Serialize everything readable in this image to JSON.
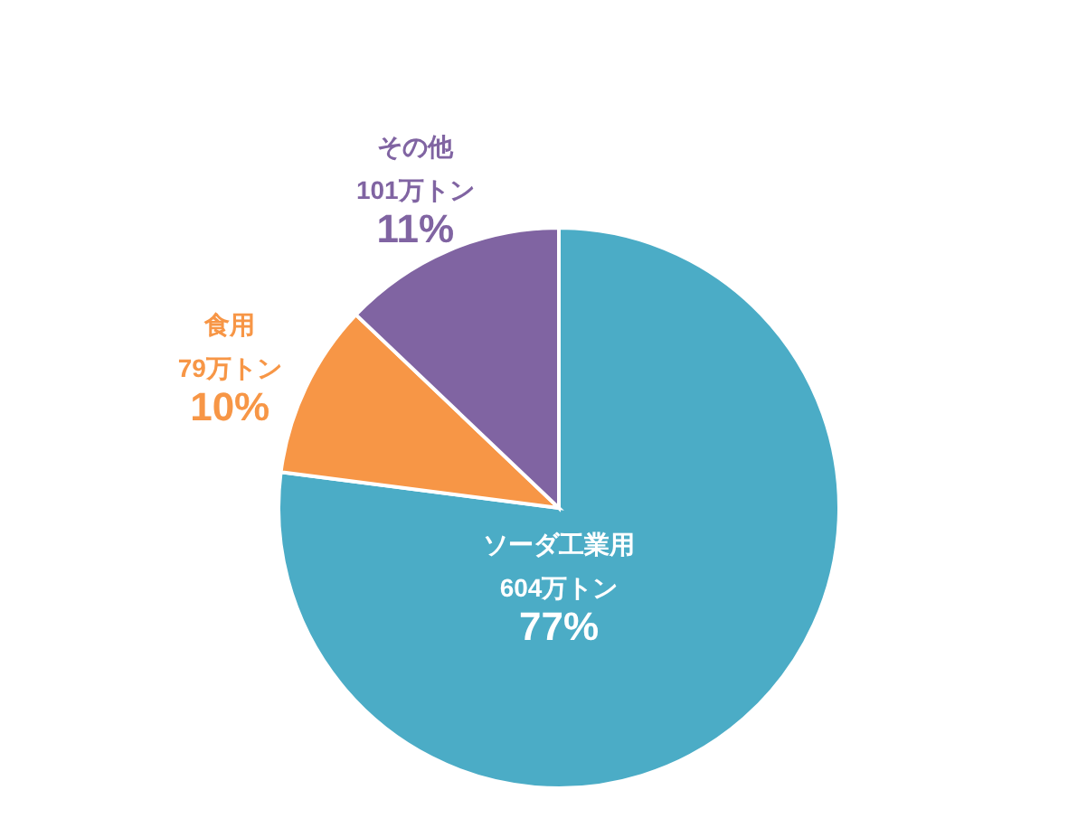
{
  "chart_data": {
    "type": "pie",
    "categories": [
      "ソーダ工業用",
      "食用",
      "その他"
    ],
    "values": [
      604,
      79,
      101
    ],
    "colors": [
      "#4bacc6",
      "#f79646",
      "#8064a2"
    ],
    "value_labels": [
      "604万トン",
      "79万トン",
      "101万トン"
    ],
    "annotations": [
      "77%",
      "10%",
      "11%"
    ]
  }
}
